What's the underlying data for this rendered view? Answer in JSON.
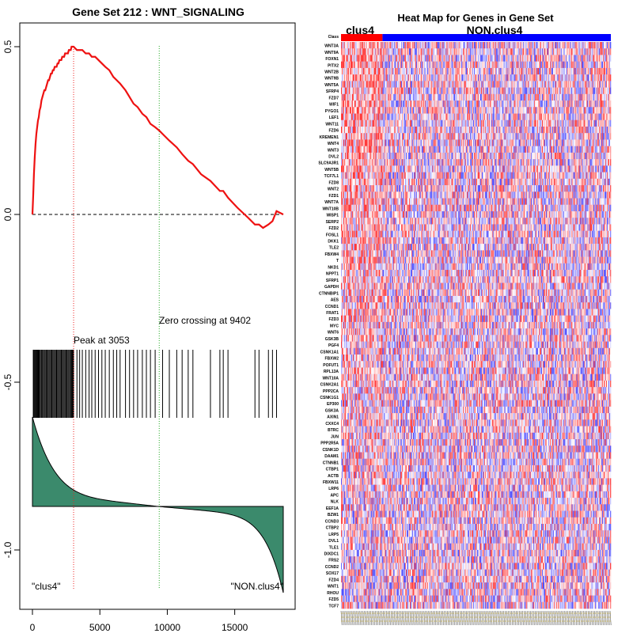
{
  "colors": {
    "es_line": "#ee1111",
    "peak_line": "#ee2222",
    "zero_line": "#22aa22",
    "ranked_fill": "#3b8a6c",
    "heat_high": "#ff2222",
    "heat_low": "#2222ff",
    "bar_clus4": "#ff0000",
    "bar_non": "#0000ff"
  },
  "enrichment_panel": {
    "title": "Gene Set  212 : WNT_SIGNALING",
    "peak_label": "Peak at 3053",
    "zero_label": "Zero crossing at 9402",
    "left_class_label": "\"clus4\"",
    "right_class_label": "\"NON.clus4\""
  },
  "heatmap_panel": {
    "title": "Heat Map for Genes in Gene Set",
    "class_bar_label_1": "clus4",
    "class_bar_label_2": "NON.clus4",
    "first_row_label": "Class",
    "gene_labels": [
      "WNT3A",
      "WNT9A",
      "FOXN1",
      "PITX2",
      "WNT2B",
      "WNT9B",
      "WNT5A",
      "SFRP4",
      "FZD7",
      "WIF1",
      "PYGO1",
      "LEF1",
      "WNT11",
      "FZD6",
      "KREMEN1",
      "WNT4",
      "WNT3",
      "DVL2",
      "SLC9A3R1",
      "WNT5B",
      "TCF7L1",
      "FZD8",
      "WNT2",
      "FZD1",
      "WNT7A",
      "WNT10B",
      "WISP1",
      "SERP2",
      "FZD2",
      "FOSL1",
      "DKK1",
      "TLE2",
      "FBXW4",
      "T",
      "NKD1",
      "NPPT1",
      "SFRP1",
      "GAPDH",
      "CTNNBIP1",
      "AES",
      "CCND1",
      "FRAT1",
      "FZD3",
      "MYC",
      "WNT6",
      "GSK3B",
      "PGF4",
      "CSNK1A1",
      "FBXW2",
      "POFUT1",
      "RPL13A",
      "WNT10A",
      "CSNK2A1",
      "PPP2CA",
      "CSNK1G1",
      "EP300",
      "GSK3A",
      "AXIN1",
      "CXXC4",
      "BTRC",
      "JUN",
      "PPP2R5A",
      "CSNK1D",
      "DAAM1",
      "CTNNB1",
      "CTBP1",
      "ACTB",
      "FBXW11",
      "LRP6",
      "APC",
      "NLK",
      "EEF1A",
      "BZW1",
      "CCND3",
      "CTBP2",
      "LRP5",
      "DVL1",
      "TLE1",
      "DIXDC1",
      "FRS2",
      "CCND2",
      "SOX17",
      "FZD4",
      "WNT1",
      "RHOU",
      "FZD5",
      "TCF7"
    ]
  },
  "chart_data": [
    {
      "type": "line",
      "panel": "running enrichment score",
      "xlim": [
        0,
        18600
      ],
      "ylim": [
        -1.1,
        0.55
      ],
      "x_ticks": [
        0,
        5000,
        10000,
        15000
      ],
      "x_tick_labels": [
        "0",
        "5000",
        "10000",
        "15000"
      ],
      "y_ticks": [
        -1.0,
        -0.5,
        0.0,
        0.5
      ],
      "y_tick_labels": [
        "-1.0",
        "-0.5",
        "0.0",
        "0.5"
      ],
      "peak_x": 3053,
      "zero_crossing_x": 9402,
      "hits": [
        60,
        110,
        170,
        230,
        290,
        350,
        410,
        470,
        530,
        600,
        670,
        740,
        810,
        880,
        950,
        1020,
        1090,
        1160,
        1230,
        1300,
        1370,
        1440,
        1510,
        1580,
        1650,
        1720,
        1790,
        1860,
        1930,
        2000,
        2070,
        2140,
        2210,
        2280,
        2350,
        2420,
        2490,
        2560,
        2630,
        2700,
        2770,
        2840,
        2900,
        2960,
        3010,
        3053,
        3300,
        3500,
        3700,
        3950,
        4200,
        4400,
        4650,
        4900,
        5150,
        5400,
        5700,
        6000,
        6250,
        6500,
        6900,
        7200,
        7500,
        7800,
        8150,
        8450,
        8750,
        9100,
        9650,
        10150,
        10700,
        11100,
        11550,
        11900,
        13200,
        13900,
        14150,
        14500,
        16500,
        16800,
        17500,
        17800,
        18100
      ],
      "series": [
        {
          "x": [
            0,
            60,
            110,
            170,
            230,
            290,
            350,
            410,
            470,
            530,
            600,
            670,
            740,
            810,
            880,
            950,
            1020,
            1090,
            1160,
            1230,
            1300,
            1370,
            1440,
            1510,
            1580,
            1650,
            1720,
            1790,
            1860,
            1930,
            2000,
            2070,
            2140,
            2210,
            2280,
            2350,
            2420,
            2490,
            2560,
            2630,
            2700,
            2770,
            2840,
            2900,
            2960,
            3010,
            3053,
            3300,
            3500,
            3700,
            3950,
            4200,
            4400,
            4650,
            4900,
            5150,
            5400,
            5700,
            6000,
            6250,
            6500,
            6900,
            7200,
            7500,
            7800,
            8150,
            8450,
            8750,
            9100,
            9402,
            9650,
            10150,
            10700,
            11100,
            11550,
            11900,
            12500,
            13200,
            13900,
            14150,
            14500,
            15200,
            16000,
            16500,
            16800,
            17100,
            17500,
            17800,
            18100,
            18600
          ],
          "y": [
            0.0,
            0.06,
            0.12,
            0.17,
            0.21,
            0.24,
            0.26,
            0.28,
            0.29,
            0.31,
            0.32,
            0.34,
            0.35,
            0.36,
            0.37,
            0.37,
            0.38,
            0.39,
            0.4,
            0.4,
            0.41,
            0.42,
            0.42,
            0.43,
            0.43,
            0.44,
            0.44,
            0.44,
            0.45,
            0.45,
            0.46,
            0.46,
            0.46,
            0.47,
            0.47,
            0.47,
            0.48,
            0.48,
            0.48,
            0.48,
            0.49,
            0.49,
            0.49,
            0.5,
            0.5,
            0.5,
            0.5,
            0.49,
            0.49,
            0.49,
            0.48,
            0.48,
            0.47,
            0.47,
            0.46,
            0.45,
            0.44,
            0.43,
            0.41,
            0.4,
            0.39,
            0.37,
            0.35,
            0.33,
            0.32,
            0.3,
            0.29,
            0.27,
            0.26,
            0.25,
            0.24,
            0.22,
            0.2,
            0.18,
            0.16,
            0.15,
            0.12,
            0.1,
            0.07,
            0.07,
            0.05,
            0.02,
            -0.01,
            -0.03,
            -0.03,
            -0.04,
            -0.03,
            -0.02,
            0.01,
            0.0
          ]
        }
      ],
      "baseline_y": 0.0
    },
    {
      "type": "heatmap",
      "panel": "expression heat map",
      "rows": 87,
      "columns": 345,
      "class_split_column": 53,
      "classes": [
        "clus4",
        "NON.clus4"
      ]
    }
  ]
}
